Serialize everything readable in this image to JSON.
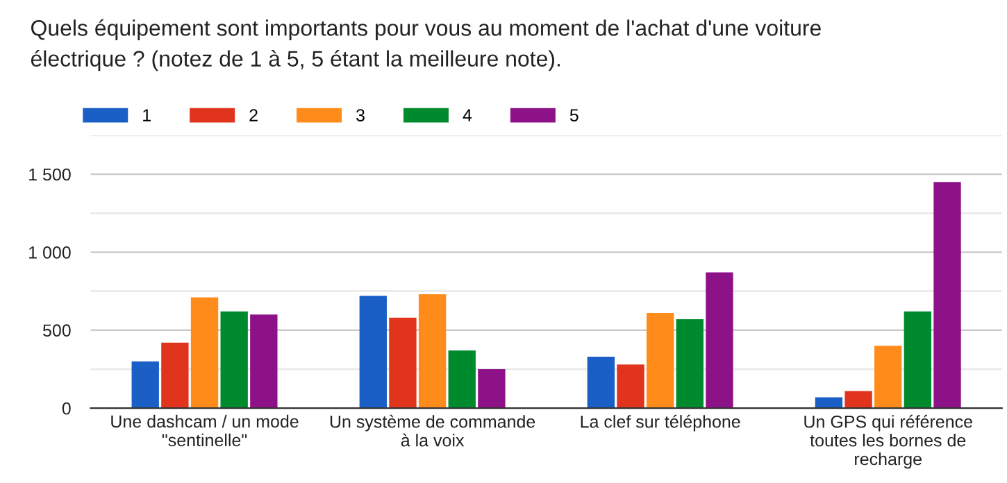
{
  "chart_data": {
    "type": "bar",
    "title": "Quels équipement sont importants pour vous au moment de l'achat d'une voiture\nélectrique ? (notez de 1 à 5, 5 étant la meilleure note).",
    "categories": [
      "Une dashcam / un mode\n\"sentinelle\"",
      "Un système de commande\nà la voix",
      "La clef sur téléphone",
      "Un GPS qui référence\ntoutes les bornes de\nrecharge"
    ],
    "series": [
      {
        "name": "1",
        "color": "#1a5fc6",
        "values": [
          300,
          720,
          330,
          70
        ]
      },
      {
        "name": "2",
        "color": "#e0341c",
        "values": [
          420,
          580,
          280,
          110
        ]
      },
      {
        "name": "3",
        "color": "#ff8c1a",
        "values": [
          710,
          730,
          610,
          400
        ]
      },
      {
        "name": "4",
        "color": "#008a2e",
        "values": [
          620,
          370,
          570,
          620
        ]
      },
      {
        "name": "5",
        "color": "#8e1287",
        "values": [
          600,
          250,
          870,
          1450
        ]
      }
    ],
    "ylim": [
      0,
      1750
    ],
    "yticks": [
      0,
      {
        "value": 250,
        "label": null
      },
      500,
      {
        "value": 750,
        "label": null
      },
      {
        "value": 1000,
        "label": "1 000"
      },
      {
        "value": 1250,
        "label": null
      },
      {
        "value": 1500,
        "label": "1 500"
      },
      {
        "value": 1750,
        "label": null
      }
    ],
    "grid": "y",
    "legend": "top left"
  }
}
